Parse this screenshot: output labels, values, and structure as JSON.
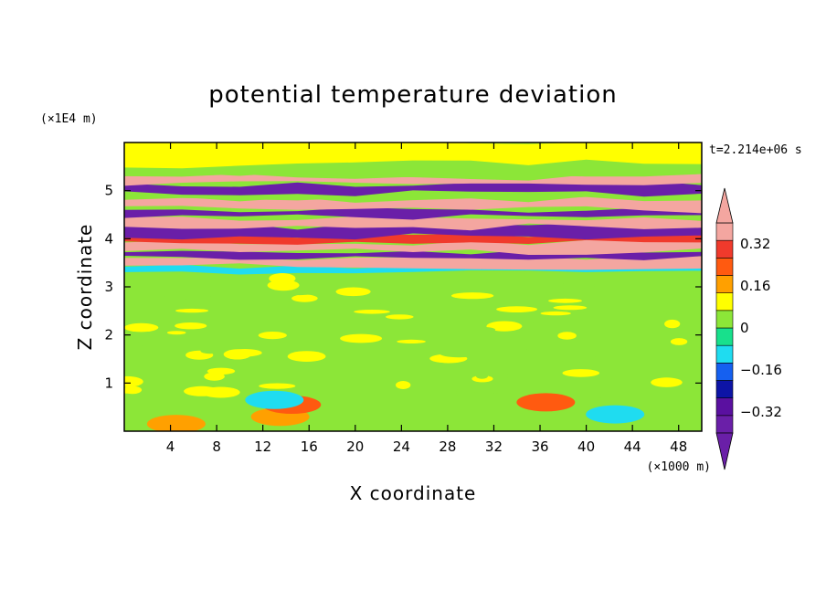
{
  "chart_data": {
    "type": "heatmap",
    "title": "potential temperature deviation",
    "xlabel": "X coordinate",
    "ylabel": "Z coordinate",
    "x_unit": "(×1000 m)",
    "y_unit": "(×1E4 m)",
    "time_label": "t=2.214e+06 s",
    "xlim": [
      0,
      50
    ],
    "ylim": [
      0,
      6
    ],
    "x_ticks": [
      4,
      8,
      12,
      16,
      20,
      24,
      28,
      32,
      36,
      40,
      44,
      48
    ],
    "y_ticks": [
      1,
      2,
      3,
      4,
      5
    ],
    "colorbar": {
      "levels": [
        -0.4,
        -0.32,
        -0.24,
        -0.16,
        -0.08,
        0,
        0.08,
        0.16,
        0.24,
        0.32,
        0.4
      ],
      "labels": [
        {
          "value": -0.32,
          "text": "−0.32"
        },
        {
          "value": -0.16,
          "text": "−0.16"
        },
        {
          "value": 0,
          "text": "0"
        },
        {
          "value": 0.16,
          "text": "0.16"
        },
        {
          "value": 0.32,
          "text": "0.32"
        }
      ],
      "colors": [
        "#6a1fa8",
        "#5a10a0",
        "#0d14a6",
        "#1560f0",
        "#1fdcf0",
        "#18e08c",
        "#8ce638",
        "#ffff00",
        "#ffa000",
        "#ff5a10",
        "#f03a2c",
        "#f4a6a0"
      ],
      "under_color": "#6a1fa8",
      "over_color": "#f4a6a0"
    },
    "bands": [
      {
        "zmin": 0,
        "zmax": 0.75,
        "value": 0.02
      },
      {
        "zmin": 0.75,
        "zmax": 3.3,
        "value": 0.05
      },
      {
        "zmin": 3.3,
        "zmax": 3.42,
        "value": -0.12
      },
      {
        "zmin": 3.42,
        "zmax": 3.6,
        "value": 0.45
      },
      {
        "zmin": 3.6,
        "zmax": 3.72,
        "value": -0.45
      },
      {
        "zmin": 3.72,
        "zmax": 3.92,
        "value": 0.45
      },
      {
        "zmin": 3.92,
        "zmax": 4.05,
        "value": 0.32
      },
      {
        "zmin": 4.05,
        "zmax": 4.25,
        "value": -0.45
      },
      {
        "zmin": 4.25,
        "zmax": 4.45,
        "value": 0.45
      },
      {
        "zmin": 4.45,
        "zmax": 4.6,
        "value": -0.45
      },
      {
        "zmin": 4.6,
        "zmax": 4.82,
        "value": 0.45
      },
      {
        "zmin": 4.82,
        "zmax": 4.95,
        "value": 0.02
      },
      {
        "zmin": 4.95,
        "zmax": 5.15,
        "value": -0.45
      },
      {
        "zmin": 5.15,
        "zmax": 5.3,
        "value": 0.45
      },
      {
        "zmin": 5.3,
        "zmax": 5.55,
        "value": 0.05
      },
      {
        "zmin": 5.55,
        "zmax": 6.0,
        "value": 0.08
      }
    ],
    "features": [
      {
        "x": 13.5,
        "z": 0.3,
        "value": 0.16
      },
      {
        "x": 14.5,
        "z": 0.55,
        "value": 0.3
      },
      {
        "x": 36.5,
        "z": 0.6,
        "value": 0.3
      },
      {
        "x": 42.5,
        "z": 0.35,
        "value": -0.16
      },
      {
        "x": 13,
        "z": 0.65,
        "value": -0.1
      },
      {
        "x": 4.5,
        "z": 0.15,
        "value": 0.16
      }
    ]
  }
}
